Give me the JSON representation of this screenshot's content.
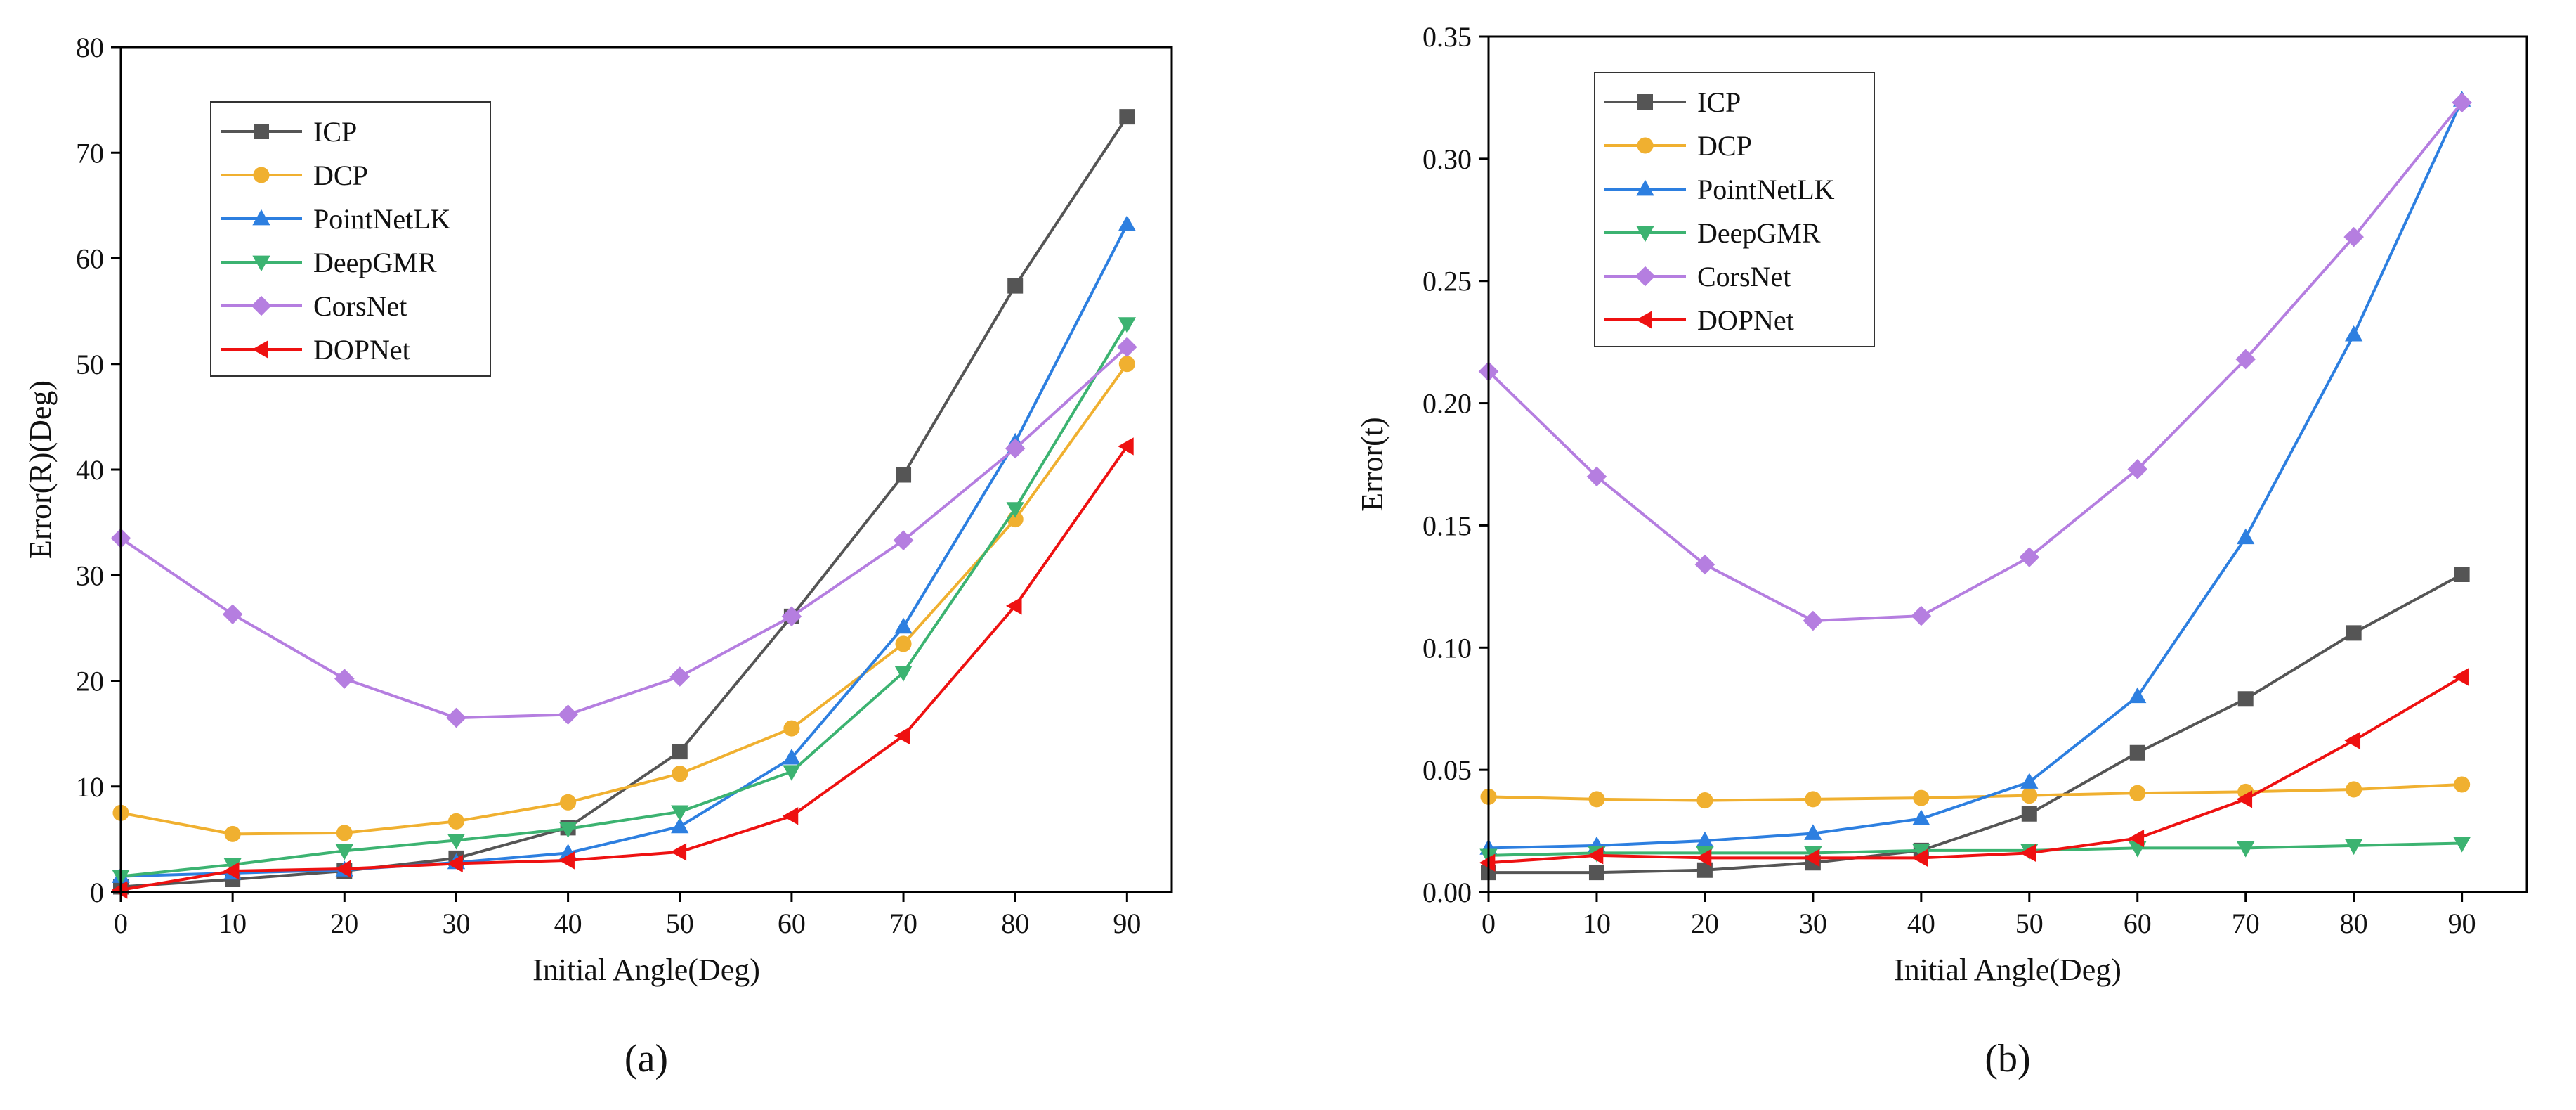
{
  "chart_data": [
    {
      "type": "line",
      "caption": "(a)",
      "xlabel": "Initial Angle(Deg)",
      "ylabel": "Error(R)(Deg)",
      "x": [
        0,
        10,
        20,
        30,
        40,
        50,
        60,
        70,
        80,
        90
      ],
      "xlim": [
        0,
        94
      ],
      "ylim": [
        0,
        80
      ],
      "xticks": [
        0,
        10,
        20,
        30,
        40,
        50,
        60,
        70,
        80,
        90
      ],
      "yticks": [
        0,
        10,
        20,
        30,
        40,
        50,
        60,
        70,
        80
      ],
      "ytick_labels": [
        "0",
        "10",
        "20",
        "30",
        "40",
        "50",
        "60",
        "70",
        "80"
      ],
      "legend_position": "top-left",
      "series": [
        {
          "name": "ICP",
          "color": "#555555",
          "marker": "square",
          "values": [
            0.5,
            1.2,
            2.0,
            3.2,
            6.1,
            13.3,
            26.1,
            39.5,
            57.4,
            73.4
          ]
        },
        {
          "name": "DCP",
          "color": "#f0b030",
          "marker": "circle",
          "values": [
            7.5,
            5.5,
            5.6,
            6.7,
            8.5,
            11.2,
            15.5,
            23.5,
            35.3,
            50.0
          ]
        },
        {
          "name": "PointNetLK",
          "color": "#2d7fe0",
          "marker": "triangle-up",
          "values": [
            1.5,
            1.8,
            2.1,
            2.8,
            3.7,
            6.2,
            12.7,
            25.1,
            42.6,
            63.2
          ]
        },
        {
          "name": "DeepGMR",
          "color": "#3cb371",
          "marker": "triangle-down",
          "values": [
            1.5,
            2.6,
            3.9,
            4.9,
            6.0,
            7.6,
            11.4,
            20.8,
            36.3,
            53.8
          ]
        },
        {
          "name": "CorsNet",
          "color": "#b57ee0",
          "marker": "diamond",
          "values": [
            33.5,
            26.3,
            20.2,
            16.5,
            16.8,
            20.4,
            26.1,
            33.3,
            42.0,
            51.6
          ]
        },
        {
          "name": "DOPNet",
          "color": "#ee1111",
          "marker": "triangle-left",
          "values": [
            0.2,
            2.0,
            2.2,
            2.7,
            3.0,
            3.8,
            7.2,
            14.8,
            27.1,
            42.2
          ]
        }
      ]
    },
    {
      "type": "line",
      "caption": "(b)",
      "xlabel": "Initial Angle(Deg)",
      "ylabel": "Error(t)",
      "x": [
        0,
        10,
        20,
        30,
        40,
        50,
        60,
        70,
        80,
        90
      ],
      "xlim": [
        0,
        96
      ],
      "ylim": [
        0,
        0.35
      ],
      "xticks": [
        0,
        10,
        20,
        30,
        40,
        50,
        60,
        70,
        80,
        90
      ],
      "yticks": [
        0,
        0.05,
        0.1,
        0.15,
        0.2,
        0.25,
        0.3,
        0.35
      ],
      "ytick_labels": [
        "0.00",
        "0.05",
        "0.10",
        "0.15",
        "0.20",
        "0.25",
        "0.30",
        "0.35"
      ],
      "legend_position": "top-left",
      "series": [
        {
          "name": "ICP",
          "color": "#555555",
          "marker": "square",
          "values": [
            0.008,
            0.008,
            0.009,
            0.012,
            0.017,
            0.032,
            0.057,
            0.079,
            0.106,
            0.13
          ]
        },
        {
          "name": "DCP",
          "color": "#f0b030",
          "marker": "circle",
          "values": [
            0.039,
            0.038,
            0.0375,
            0.038,
            0.0385,
            0.0395,
            0.0405,
            0.041,
            0.042,
            0.044
          ]
        },
        {
          "name": "PointNetLK",
          "color": "#2d7fe0",
          "marker": "triangle-up",
          "values": [
            0.018,
            0.019,
            0.021,
            0.024,
            0.03,
            0.045,
            0.08,
            0.145,
            0.228,
            0.324
          ]
        },
        {
          "name": "DeepGMR",
          "color": "#3cb371",
          "marker": "triangle-down",
          "values": [
            0.015,
            0.016,
            0.016,
            0.016,
            0.017,
            0.017,
            0.018,
            0.018,
            0.019,
            0.02
          ]
        },
        {
          "name": "CorsNet",
          "color": "#b57ee0",
          "marker": "diamond",
          "values": [
            0.213,
            0.17,
            0.134,
            0.111,
            0.113,
            0.137,
            0.173,
            0.218,
            0.268,
            0.323
          ]
        },
        {
          "name": "DOPNet",
          "color": "#ee1111",
          "marker": "triangle-left",
          "values": [
            0.012,
            0.015,
            0.014,
            0.014,
            0.014,
            0.016,
            0.022,
            0.038,
            0.062,
            0.088
          ]
        }
      ]
    }
  ]
}
